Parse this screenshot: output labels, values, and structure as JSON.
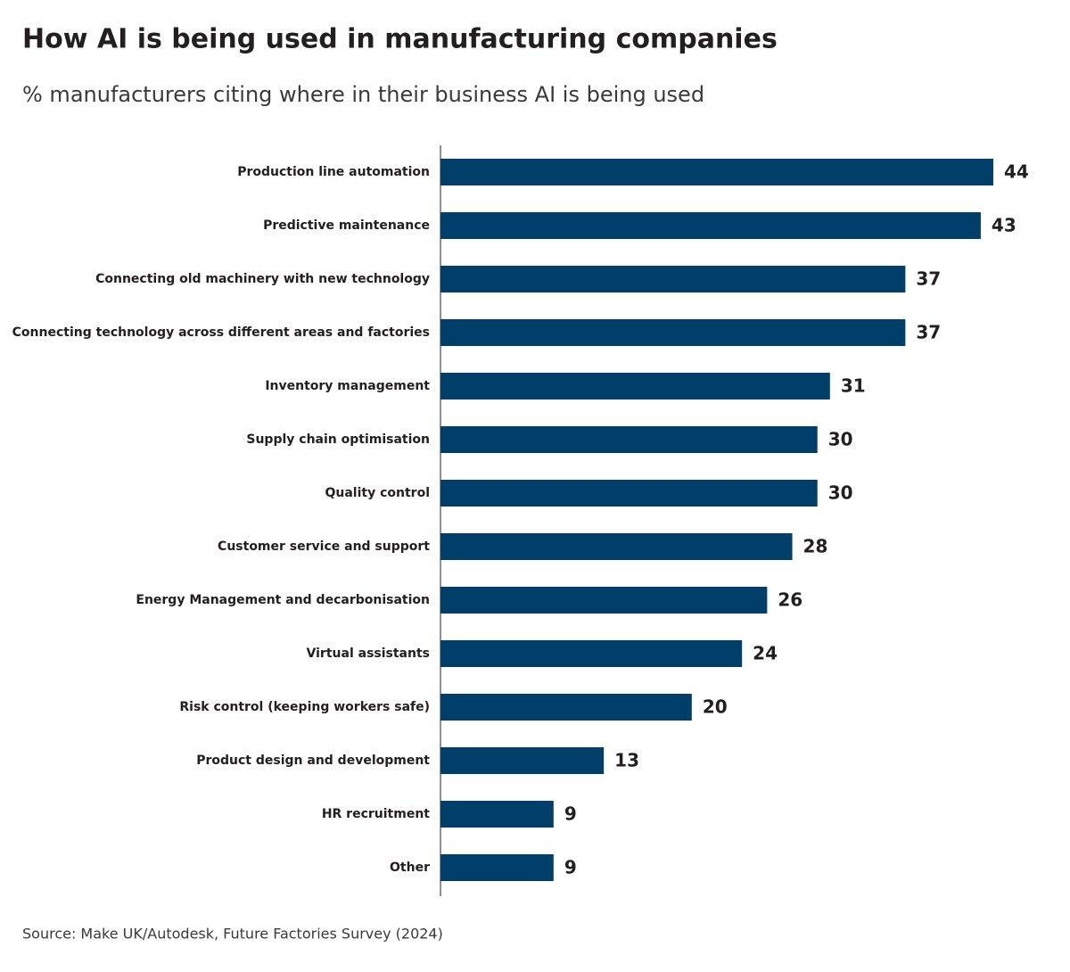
{
  "chart_data": {
    "type": "bar",
    "orientation": "horizontal",
    "title": "How AI is being used in manufacturing companies",
    "subtitle": "% manufacturers citing where in their business AI is being used",
    "source": "Source: Make UK/Autodesk, Future Factories Survey (2024)",
    "categories": [
      "Production line automation",
      "Predictive maintenance",
      "Connecting old machinery with new technology",
      "Connecting technology across different areas and factories",
      "Inventory management",
      "Supply chain optimisation",
      "Quality control",
      "Customer service and support",
      "Energy Management and decarbonisation",
      "Virtual assistants",
      "Risk control (keeping workers safe)",
      "Product design and development",
      "HR recruitment",
      "Other"
    ],
    "values": [
      44,
      43,
      37,
      37,
      31,
      30,
      30,
      28,
      26,
      24,
      20,
      13,
      9,
      9
    ],
    "color": "#003f69"
  }
}
